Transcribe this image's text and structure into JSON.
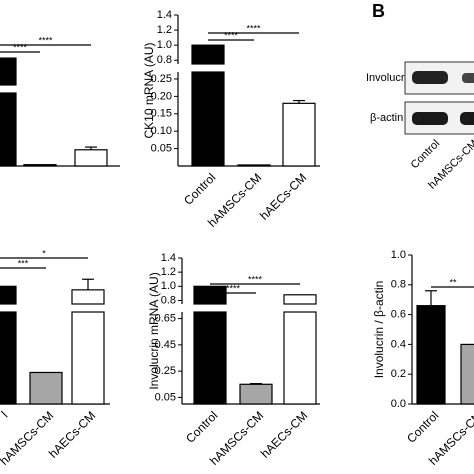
{
  "chart_data": [
    {
      "type": "bar",
      "categories": [
        null,
        null,
        null
      ],
      "values": [
        1.0,
        0.005,
        0.06
      ],
      "errors": [
        null,
        null,
        0.01
      ],
      "colors": [
        "#000000",
        "#000000",
        "#ffffff"
      ],
      "ylim": [
        0,
        1.4
      ],
      "ybreak": [
        0.27,
        0.75
      ],
      "annotations": [
        {
          "text": "****",
          "from": 0,
          "to": 1
        },
        {
          "text": "****",
          "from": 0,
          "to": 2
        }
      ]
    },
    {
      "type": "bar",
      "ylabel": "CK10 mRNA (AU)",
      "categories": [
        "Control",
        "hAMSCs-CM",
        "hAECs-CM"
      ],
      "values": [
        1.0,
        0.003,
        0.18
      ],
      "errors": [
        null,
        null,
        0.008
      ],
      "colors": [
        "#000000",
        "#000000",
        "#ffffff"
      ],
      "ylim": [
        0,
        1.4
      ],
      "ybreak": [
        0.27,
        0.75
      ],
      "yticks": [
        {
          "value": 0.05,
          "label": "0.05"
        },
        {
          "value": 0.1,
          "label": "0.10"
        },
        {
          "value": 0.15,
          "label": "0.15"
        },
        {
          "value": 0.2,
          "label": "0.20"
        },
        {
          "value": 0.25,
          "label": "0.25"
        },
        0.8,
        {
          "value": 1.0,
          "label": "1.0"
        },
        1.2,
        1.4
      ],
      "annotations": [
        {
          "text": "****",
          "from": 0,
          "to": 1
        },
        {
          "text": "****",
          "from": 0,
          "to": 2
        }
      ]
    },
    {
      "type": "bar",
      "ylabel": "Involucrin / β-actin",
      "categories": [
        "Control",
        "hAMSCs-CM"
      ],
      "values": [
        0.66,
        0.4
      ],
      "errors": [
        0.1,
        null
      ],
      "colors": [
        "#000000",
        "#a6a6a6"
      ],
      "ylim": [
        0,
        1.0
      ],
      "yticks": [
        {
          "value": 0,
          "label": "0.0"
        },
        0.2,
        0.4,
        0.6,
        0.8,
        {
          "value": 1.0,
          "label": "1.0"
        }
      ],
      "annotations": [
        {
          "text": "**",
          "from": 0,
          "to": 1
        }
      ]
    },
    {
      "type": "bar",
      "categories": [
        "l",
        "hAMSCs-CM",
        "hAECs-CM"
      ],
      "values": [
        1.0,
        0.24,
        0.95
      ],
      "errors": [
        null,
        null,
        0.15
      ],
      "colors": [
        "#000000",
        "#a6a6a6",
        "#ffffff"
      ],
      "ylim": [
        0,
        1.4
      ],
      "ybreak": [
        0.7,
        0.75
      ],
      "annotations": [
        {
          "text": "***",
          "from": 0,
          "to": 1
        },
        {
          "text": "*",
          "from": 0,
          "to": 2
        }
      ]
    },
    {
      "type": "bar",
      "ylabel": "Involucrin mRNA (AU)",
      "categories": [
        "Control",
        "hAMSCs-CM",
        "hAECs-CM"
      ],
      "values": [
        1.0,
        0.15,
        0.88
      ],
      "errors": [
        null,
        0.005,
        null
      ],
      "colors": [
        "#000000",
        "#a6a6a6",
        "#ffffff"
      ],
      "ylim": [
        0,
        1.4
      ],
      "ybreak": [
        0.7,
        0.75
      ],
      "yticks": [
        0.05,
        0.25,
        0.45,
        0.65,
        0.8,
        {
          "value": 1.0,
          "label": "1.0"
        },
        1.2,
        1.4
      ],
      "annotations": [
        {
          "text": "****",
          "from": 0,
          "to": 1
        },
        {
          "text": "****",
          "from": 0,
          "to": 2
        }
      ]
    }
  ],
  "blot": {
    "panel": "B",
    "rows": [
      "Involucrin",
      "β-actin"
    ],
    "lanes": [
      "Control",
      "hAMSCs-CM"
    ]
  }
}
